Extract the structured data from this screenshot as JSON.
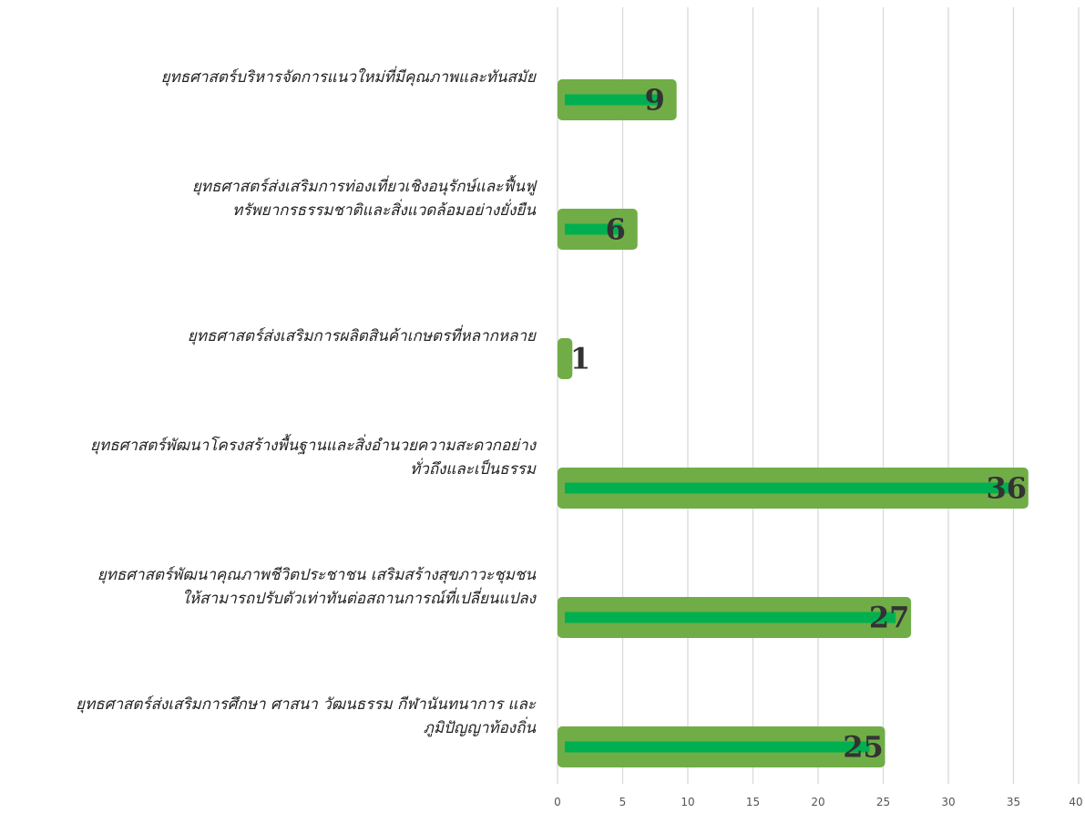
{
  "chart_data": {
    "type": "bar",
    "orientation": "horizontal",
    "categories": [
      [
        "ยุทธศาสตร์บริหารจัดการแนวใหม่ที่มีคุณภาพและทันสมัย"
      ],
      [
        "ยุทธศาสตร์ส่งเสริมการท่องเที่ยวเชิงอนุรักษ์และฟื้นฟู",
        "ทรัพยากรธรรมชาติและสิ่งแวดล้อมอย่างยั่งยืน"
      ],
      [
        "ยุทธศาสตร์ส่งเสริมการผลิตสินค้าเกษตรที่หลากหลาย"
      ],
      [
        "ยุทธศาสตร์พัฒนาโครงสร้างพื้นฐานและสิ่งอำนวยความสะดวกอย่าง",
        "ทั่วถึงและเป็นธรรม"
      ],
      [
        "ยุทธศาสตร์พัฒนาคุณภาพชีวิตประชาชน เสริมสร้างสุขภาวะชุมชน",
        "ให้สามารถปรับตัวเท่าทันต่อสถานการณ์ที่เปลี่ยนแปลง"
      ],
      [
        "ยุทธศาสตร์ส่งเสริมการศึกษา ศาสนา วัฒนธรรม กีฬานันทนาการ และ",
        "ภูมิปัญญาท้องถิ่น"
      ]
    ],
    "values": [
      9,
      6,
      1,
      36,
      27,
      25
    ],
    "data_labels": [
      "9",
      "6",
      "1",
      "36",
      "27",
      "25"
    ],
    "xlim": [
      0,
      40
    ],
    "x_ticks": [
      "0",
      "5",
      "10",
      "15",
      "20",
      "25",
      "30",
      "35",
      "40"
    ],
    "grid": true,
    "legend": "none",
    "title": "",
    "xlabel": "",
    "ylabel": "",
    "colors": {
      "bar_outer": "#70AD47",
      "bar_inner": "#00B050",
      "grid": "#D9D9D9",
      "label": "#333333"
    }
  }
}
